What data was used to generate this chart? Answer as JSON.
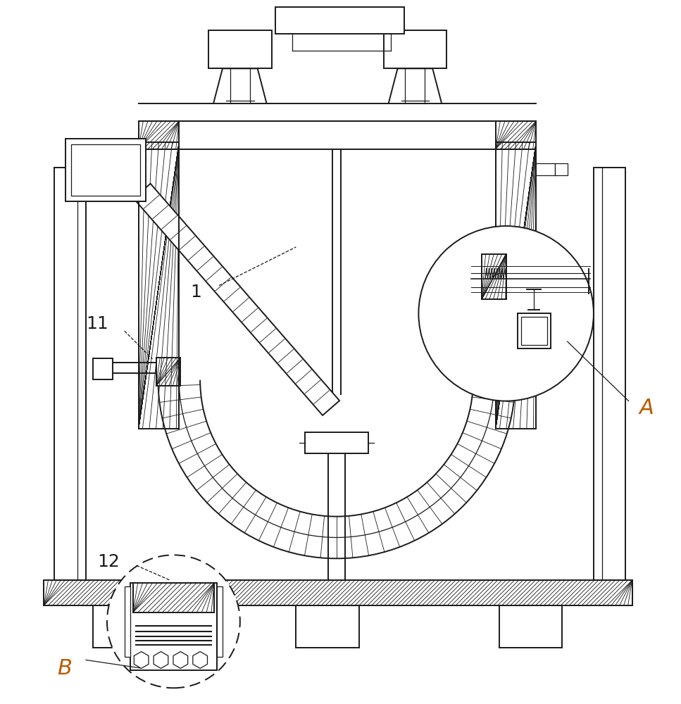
{
  "bg_color": "#ffffff",
  "line_color": "#1a1a1a",
  "label_color": "#1a1a1a",
  "label_AB_color": "#b85c00",
  "figure_width": 9.67,
  "figure_height": 10.0,
  "dpi": 100,
  "label_fontsize": 18
}
